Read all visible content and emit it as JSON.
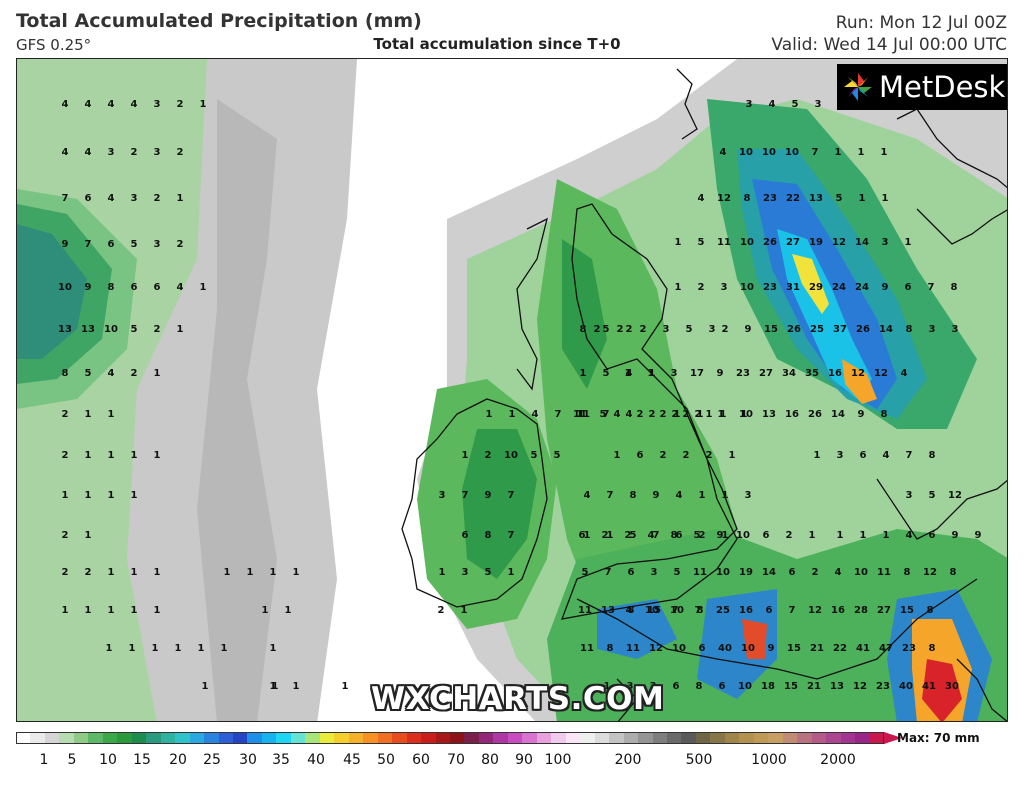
{
  "header": {
    "title": "Total Accumulated Precipitation (mm)",
    "model": "GFS 0.25°",
    "subtitle": "Total accumulation since T+0",
    "run": "Run: Mon 12 Jul 00Z",
    "valid": "Valid: Wed 14 Jul 00:00 UTC"
  },
  "logo": {
    "name": "MetDesk",
    "icon": "pinwheel-logo-icon"
  },
  "watermark": "WXCHARTS.COM",
  "map": {
    "region": "British Isles and North Sea",
    "colors": {
      "land_outline": "#111111",
      "no_rain": "#ffffff"
    },
    "values": [
      [
        "4",
        "4",
        "4",
        "4",
        "3",
        "2",
        "1"
      ],
      [
        "4",
        "4",
        "3",
        "2",
        "3",
        "2"
      ],
      [
        "7",
        "6",
        "4",
        "3",
        "2",
        "1"
      ],
      [
        "9",
        "7",
        "6",
        "5",
        "3",
        "2"
      ],
      [
        "10",
        "9",
        "8",
        "6",
        "6",
        "4",
        "1"
      ],
      [
        "13",
        "13",
        "10",
        "5",
        "2",
        "1"
      ],
      [
        "8",
        "5",
        "4",
        "2",
        "1"
      ],
      [
        "2",
        "1",
        "1"
      ],
      [
        "2",
        "1",
        "1",
        "1",
        "1"
      ],
      [
        "1",
        "1",
        "1",
        "1"
      ],
      [
        "2",
        "1"
      ],
      [
        "2",
        "2",
        "1",
        "1",
        "1"
      ],
      [
        "1",
        "1",
        "1",
        "1",
        "1"
      ],
      [
        "1",
        "1",
        "1",
        "1",
        "1",
        "1"
      ],
      [
        "1",
        "1",
        "1"
      ],
      [
        "3",
        "4",
        "5",
        "3"
      ],
      [
        "4",
        "10",
        "10",
        "10",
        "7",
        "1",
        "1",
        "1"
      ],
      [
        "4",
        "12",
        "8",
        "23",
        "22",
        "13",
        "5",
        "1",
        "1"
      ],
      [
        "1",
        "5",
        "11",
        "10",
        "26",
        "27",
        "19",
        "12",
        "14",
        "3",
        "1"
      ],
      [
        "1",
        "2",
        "3",
        "10",
        "23",
        "31",
        "29",
        "24",
        "24",
        "9",
        "6",
        "7",
        "8"
      ],
      [
        "2",
        "9",
        "15",
        "26",
        "25",
        "37",
        "26",
        "14",
        "8",
        "3",
        "3"
      ],
      [
        "1",
        "1",
        "3",
        "17",
        "9",
        "23",
        "27",
        "34",
        "35",
        "16",
        "12",
        "12",
        "4"
      ],
      [
        "1",
        "1",
        "1",
        "10",
        "13",
        "16",
        "26",
        "14",
        "9",
        "8"
      ],
      [
        "1",
        "3",
        "6",
        "4",
        "7",
        "8"
      ],
      [
        "3",
        "5",
        "12"
      ],
      [
        "1",
        "1",
        "1",
        "4",
        "6",
        "9",
        "9"
      ],
      [
        "1",
        "1",
        "5",
        "7",
        "6",
        "2",
        "1"
      ],
      [
        "4",
        "2",
        "2",
        "2",
        "1"
      ],
      [
        "1",
        "6",
        "2",
        "2",
        "2",
        "1"
      ],
      [
        "4",
        "7",
        "8",
        "9",
        "4",
        "1",
        "1",
        "3"
      ],
      [
        "6",
        "2",
        "2",
        "4",
        "8",
        "5",
        "9",
        "10",
        "6",
        "2",
        "1"
      ],
      [
        "5",
        "7",
        "6",
        "3",
        "5",
        "11",
        "10",
        "19",
        "14",
        "6",
        "2",
        "4",
        "10",
        "11",
        "8",
        "12",
        "8"
      ],
      [
        "11",
        "13",
        "8",
        "15",
        "10",
        "8",
        "25",
        "16",
        "6",
        "7",
        "12",
        "16",
        "28",
        "27",
        "15",
        "8"
      ],
      [
        "11",
        "8",
        "11",
        "12",
        "10",
        "6",
        "40",
        "10",
        "9",
        "15",
        "21",
        "22",
        "41",
        "47",
        "23",
        "8"
      ],
      [
        "1",
        "3",
        "3",
        "6",
        "8",
        "6",
        "10",
        "18",
        "15",
        "21",
        "13",
        "12",
        "23",
        "40",
        "41",
        "30"
      ],
      [
        "1",
        "1",
        "1",
        "1"
      ],
      [
        "2",
        "2",
        "2",
        "3",
        "5",
        "3"
      ],
      [
        "11",
        "7",
        "4",
        "2",
        "2",
        "2",
        "1",
        "1"
      ],
      [
        "2",
        "1"
      ],
      [
        "3",
        "7",
        "9",
        "7"
      ],
      [
        "6",
        "8",
        "7"
      ],
      [
        "1",
        "3",
        "5",
        "1"
      ],
      [
        "1",
        "1"
      ],
      [
        "1",
        "2",
        "10",
        "5",
        "5"
      ],
      [
        "1",
        "1",
        "4",
        "7",
        "1"
      ],
      [
        "8",
        "5",
        "2"
      ],
      [
        "1",
        "5",
        "4",
        "1"
      ],
      [
        "11",
        "5"
      ],
      [
        "4",
        "10",
        "7",
        "7"
      ],
      [
        "1"
      ],
      [
        "1",
        "1"
      ]
    ]
  },
  "scale": {
    "max_label": "Max: 70 mm",
    "ticks": [
      "1",
      "5",
      "10",
      "15",
      "20",
      "25",
      "30",
      "35",
      "40",
      "45",
      "50",
      "60",
      "70",
      "80",
      "90",
      "100",
      "200",
      "500",
      "1000",
      "2000"
    ]
  }
}
